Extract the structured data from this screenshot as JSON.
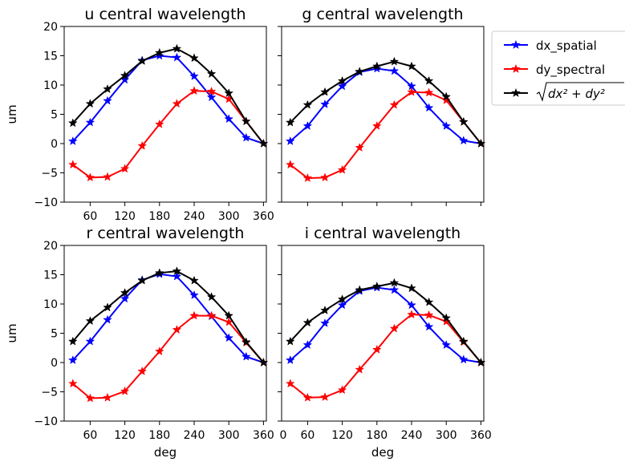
{
  "chart_data": [
    {
      "type": "line",
      "title": "u central wavelength",
      "xlabel": "",
      "ylabel": "um",
      "xlim": [
        15,
        365
      ],
      "ylim": [
        -10,
        20
      ],
      "xticks": [
        "60",
        "120",
        "180",
        "240",
        "300",
        "360"
      ],
      "yticks": [
        "−10",
        "−5",
        "0",
        "5",
        "10",
        "15",
        "20"
      ],
      "x": [
        30,
        60,
        90,
        120,
        150,
        180,
        210,
        240,
        270,
        300,
        330,
        360
      ],
      "series": [
        {
          "name": "dx_spatial",
          "color": "#0000ff",
          "values": [
            0.4,
            3.6,
            7.3,
            10.9,
            14.2,
            15.0,
            14.7,
            11.5,
            7.9,
            4.2,
            1.0,
            0
          ]
        },
        {
          "name": "dy_spectral",
          "color": "#ff0000",
          "values": [
            -3.6,
            -5.8,
            -5.7,
            -4.3,
            -0.4,
            3.3,
            6.8,
            9.0,
            8.9,
            7.6,
            3.8,
            0
          ]
        },
        {
          "name": "sqrt",
          "color": "#000000",
          "values": [
            3.5,
            6.8,
            9.3,
            11.6,
            14.1,
            15.5,
            16.2,
            14.6,
            11.9,
            8.6,
            3.8,
            0
          ]
        }
      ]
    },
    {
      "type": "line",
      "title": "g central wavelength",
      "xlabel": "",
      "ylabel": "",
      "xlim": [
        15,
        365
      ],
      "ylim": [
        -10,
        20
      ],
      "xticks": [],
      "yticks": [],
      "x": [
        30,
        60,
        90,
        120,
        150,
        180,
        210,
        240,
        270,
        300,
        330,
        360
      ],
      "series": [
        {
          "name": "dx_spatial",
          "color": "#0000ff",
          "values": [
            0.4,
            3.0,
            6.7,
            9.8,
            12.2,
            12.8,
            12.4,
            9.8,
            6.1,
            3.0,
            0.5,
            0
          ]
        },
        {
          "name": "dy_spectral",
          "color": "#ff0000",
          "values": [
            -3.6,
            -5.9,
            -5.8,
            -4.5,
            -0.7,
            3.0,
            6.6,
            8.8,
            8.7,
            7.4,
            3.7,
            0
          ]
        },
        {
          "name": "sqrt",
          "color": "#000000",
          "values": [
            3.6,
            6.6,
            8.8,
            10.7,
            12.3,
            13.2,
            14.0,
            13.2,
            10.7,
            8.0,
            3.7,
            0
          ]
        }
      ]
    },
    {
      "type": "line",
      "title": "r central wavelength",
      "xlabel": "deg",
      "ylabel": "um",
      "xlim": [
        15,
        365
      ],
      "ylim": [
        -10,
        20
      ],
      "xticks": [
        "60",
        "120",
        "180",
        "240",
        "300",
        "360"
      ],
      "yticks": [
        "−10",
        "−5",
        "0",
        "5",
        "10",
        "15",
        "20"
      ],
      "x": [
        30,
        60,
        90,
        120,
        150,
        180,
        210,
        240,
        270,
        300,
        330,
        360
      ],
      "series": [
        {
          "name": "dx_spatial",
          "color": "#0000ff",
          "values": [
            0.4,
            3.6,
            7.3,
            10.9,
            14.1,
            15.1,
            14.7,
            11.5,
            7.9,
            4.2,
            1.0,
            0
          ]
        },
        {
          "name": "dy_spectral",
          "color": "#ff0000",
          "values": [
            -3.6,
            -6.1,
            -6.0,
            -4.9,
            -1.5,
            1.9,
            5.6,
            8.0,
            8.0,
            6.9,
            3.4,
            0
          ]
        },
        {
          "name": "sqrt",
          "color": "#000000",
          "values": [
            3.6,
            7.1,
            9.4,
            11.9,
            14.0,
            15.3,
            15.6,
            14.0,
            11.2,
            8.0,
            3.5,
            0
          ]
        }
      ]
    },
    {
      "type": "line",
      "title": "i central wavelength",
      "xlabel": "deg",
      "ylabel": "",
      "xlim": [
        15,
        365
      ],
      "ylim": [
        -10,
        20
      ],
      "xticks": [
        "0",
        "60",
        "120",
        "180",
        "240",
        "300",
        "360"
      ],
      "yticks": [],
      "x": [
        30,
        60,
        90,
        120,
        150,
        180,
        210,
        240,
        270,
        300,
        330,
        360
      ],
      "series": [
        {
          "name": "dx_spatial",
          "color": "#0000ff",
          "values": [
            0.4,
            3.0,
            6.7,
            9.8,
            12.2,
            12.8,
            12.4,
            9.8,
            6.1,
            3.0,
            0.5,
            0
          ]
        },
        {
          "name": "dy_spectral",
          "color": "#ff0000",
          "values": [
            -3.6,
            -6.0,
            -5.9,
            -4.7,
            -1.2,
            2.2,
            5.8,
            8.2,
            8.1,
            7.0,
            3.5,
            0
          ]
        },
        {
          "name": "sqrt",
          "color": "#000000",
          "values": [
            3.6,
            6.8,
            8.9,
            10.8,
            12.4,
            13.0,
            13.6,
            12.7,
            10.3,
            7.6,
            3.6,
            0
          ]
        }
      ]
    }
  ],
  "legend": {
    "placement": "right",
    "entries": [
      {
        "label": "dx_spatial",
        "color": "#0000ff",
        "type": "text"
      },
      {
        "label": "dy_spectral",
        "color": "#ff0000",
        "type": "text"
      },
      {
        "label": "√(dx² + dy²)",
        "color": "#000000",
        "type": "math"
      }
    ]
  }
}
